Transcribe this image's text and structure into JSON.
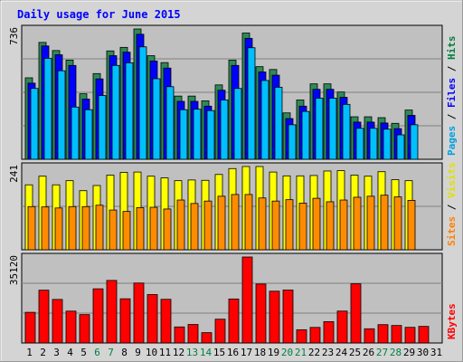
{
  "chart_data": {
    "type": "bar",
    "title": "Daily usage for June 2015",
    "days": [
      "1",
      "2",
      "3",
      "4",
      "5",
      "6",
      "7",
      "8",
      "9",
      "10",
      "11",
      "12",
      "13",
      "14",
      "15",
      "16",
      "17",
      "18",
      "19",
      "20",
      "21",
      "22",
      "23",
      "24",
      "25",
      "26",
      "27",
      "28",
      "29",
      "30",
      "31"
    ],
    "weekend_days": [
      "6",
      "7",
      "13",
      "14",
      "20",
      "21",
      "27",
      "28"
    ],
    "panels": [
      {
        "id": "hits_panel",
        "ymax": 736,
        "ymax_label": "736",
        "legend": [
          "Pages",
          "Files",
          "Hits"
        ],
        "legend_colors": [
          "#00a0e0",
          "#0000ff",
          "#008040"
        ],
        "series": [
          {
            "name": "Hits",
            "color": "#2e8b57",
            "values": [
              460,
              660,
              614,
              560,
              370,
              484,
              612,
              632,
              736,
              585,
              546,
              357,
              357,
              330,
              420,
              560,
              713,
              523,
              507,
              262,
              335,
              426,
              426,
              380,
              240,
              240,
              235,
              203,
              278,
              0,
              0
            ]
          },
          {
            "name": "Files",
            "color": "#0000ff",
            "values": [
              430,
              640,
              590,
              530,
              340,
              454,
              585,
              605,
              706,
              555,
              515,
              327,
              327,
              300,
              390,
              530,
              683,
              493,
              475,
              230,
              300,
              395,
              395,
              350,
              210,
              210,
              205,
              173,
              248,
              0,
              0
            ]
          },
          {
            "name": "Pages",
            "color": "#00bfff",
            "values": [
              400,
              570,
              500,
              295,
              280,
              360,
              530,
              545,
              635,
              455,
              410,
              280,
              283,
              275,
              335,
              400,
              630,
              445,
              407,
              195,
              270,
              345,
              345,
              310,
              175,
              175,
              170,
              138,
              195,
              0,
              0
            ]
          }
        ]
      },
      {
        "id": "visits_panel",
        "ymax": 241,
        "ymax_label": "241",
        "legend": [
          "Sites",
          "Visits"
        ],
        "legend_colors": [
          "#ff8000",
          "#e0e000"
        ],
        "series": [
          {
            "name": "Visits",
            "color": "#ffff00",
            "values": [
              188,
              213,
              188,
              200,
              171,
              186,
              216,
              224,
              225,
              213,
              208,
              200,
              202,
              201,
              218,
              235,
              241,
              241,
              225,
              214,
              214,
              215,
              228,
              229,
              216,
              213,
              226,
              203,
              200,
              0,
              0
            ]
          },
          {
            "name": "Sites",
            "color": "#ff8c00",
            "values": [
              125,
              124,
              121,
              125,
              125,
              129,
              115,
              111,
              122,
              123,
              118,
              144,
              134,
              141,
              155,
              160,
              160,
              150,
              141,
              145,
              135,
              149,
              139,
              144,
              152,
              155,
              158,
              153,
              143,
              0,
              0
            ]
          }
        ]
      },
      {
        "id": "kbytes_panel",
        "ymax": 35120,
        "ymax_label": "35120",
        "legend": [
          "KBytes"
        ],
        "legend_colors": [
          "#ff0000"
        ],
        "series": [
          {
            "name": "KBytes",
            "color": "#ff0000",
            "values": [
              12530,
              21570,
              17790,
              13020,
              11590,
              22130,
              25560,
              18060,
              24490,
              19780,
              17840,
              6560,
              7560,
              4220,
              9720,
              17980,
              35120,
              24070,
              21160,
              21640,
              5410,
              6360,
              8730,
              13040,
              24170,
              5810,
              7490,
              7150,
              6390,
              6780,
              0
            ]
          }
        ]
      }
    ]
  }
}
